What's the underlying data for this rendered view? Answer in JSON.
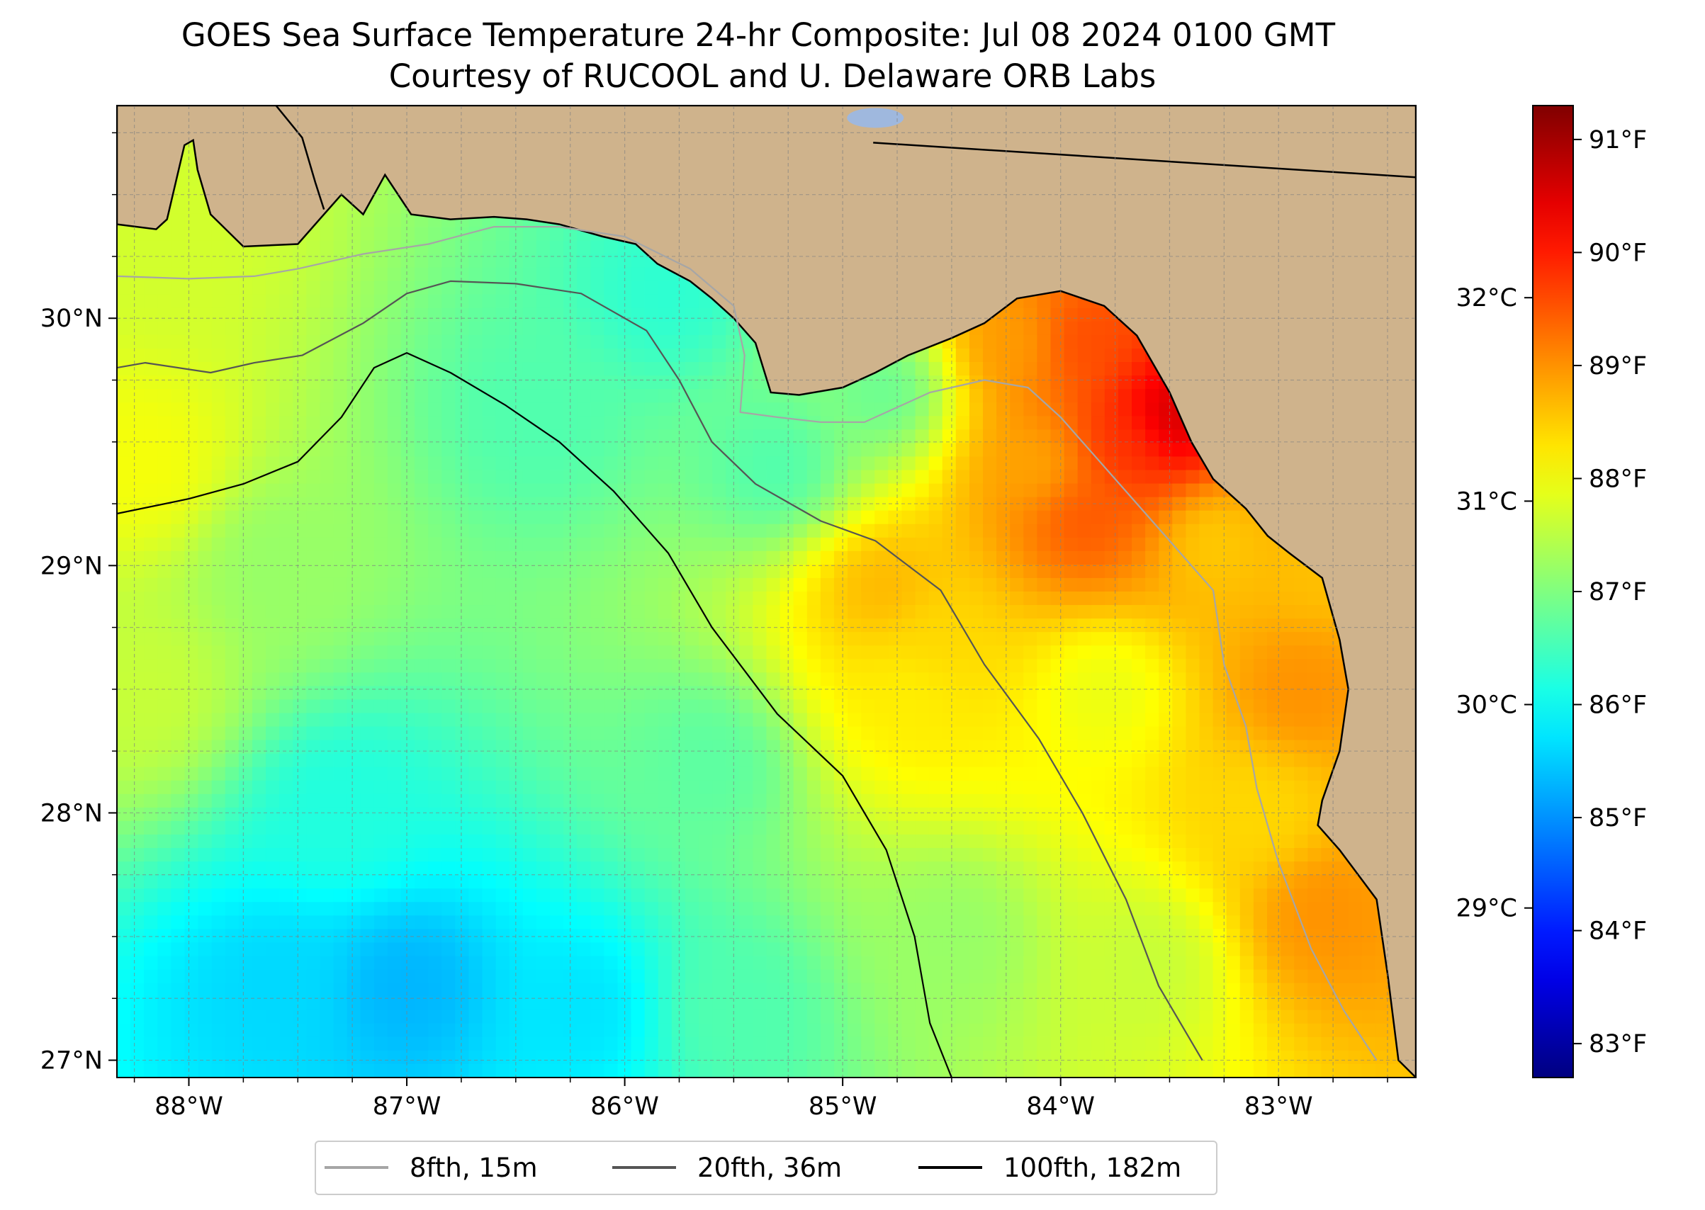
{
  "chart_data": {
    "type": "heatmap",
    "title": "GOES Sea Surface Temperature 24-hr Composite: Jul 08 2024 0100 GMT",
    "subtitle": "Courtesy of RUCOOL and U. Delaware ORB Labs",
    "map_extent": {
      "lon": [
        -88.33,
        -82.37
      ],
      "lat": [
        26.93,
        30.86
      ]
    },
    "x_ticks": [
      {
        "value": -88,
        "label": "88°W"
      },
      {
        "value": -87,
        "label": "87°W"
      },
      {
        "value": -86,
        "label": "86°W"
      },
      {
        "value": -85,
        "label": "85°W"
      },
      {
        "value": -84,
        "label": "84°W"
      },
      {
        "value": -83,
        "label": "83°W"
      }
    ],
    "y_ticks": [
      {
        "value": 27,
        "label": "27°N"
      },
      {
        "value": 28,
        "label": "28°N"
      },
      {
        "value": 29,
        "label": "29°N"
      },
      {
        "value": 30,
        "label": "30°N"
      }
    ],
    "grid": true,
    "colorbar": {
      "range_f": [
        82.7,
        91.3
      ],
      "colormap": "jet",
      "fahrenheit_ticks": [
        {
          "value": 83,
          "label": "83°F"
        },
        {
          "value": 84,
          "label": "84°F"
        },
        {
          "value": 85,
          "label": "85°F"
        },
        {
          "value": 86,
          "label": "86°F"
        },
        {
          "value": 87,
          "label": "87°F"
        },
        {
          "value": 88,
          "label": "88°F"
        },
        {
          "value": 89,
          "label": "89°F"
        },
        {
          "value": 90,
          "label": "90°F"
        },
        {
          "value": 91,
          "label": "91°F"
        }
      ],
      "celsius_ticks": [
        {
          "value": 29,
          "label": "29°C"
        },
        {
          "value": 30,
          "label": "30°C"
        },
        {
          "value": 31,
          "label": "31°C"
        },
        {
          "value": 32,
          "label": "32°C"
        }
      ]
    },
    "sst_anchors": [
      {
        "lon": -87.0,
        "lat": 27.3,
        "temp_f": 85.3
      },
      {
        "lon": -87.6,
        "lat": 27.3,
        "temp_f": 85.6
      },
      {
        "lon": -86.2,
        "lat": 27.2,
        "temp_f": 85.7
      },
      {
        "lon": -87.3,
        "lat": 28.0,
        "temp_f": 86.2
      },
      {
        "lon": -85.6,
        "lat": 28.2,
        "temp_f": 86.7
      },
      {
        "lon": -86.4,
        "lat": 29.6,
        "temp_f": 86.6
      },
      {
        "lon": -85.8,
        "lat": 30.1,
        "temp_f": 86.3
      },
      {
        "lon": -87.6,
        "lat": 29.0,
        "temp_f": 87.2
      },
      {
        "lon": -88.1,
        "lat": 30.3,
        "temp_f": 87.7
      },
      {
        "lon": -88.2,
        "lat": 29.4,
        "temp_f": 88.0
      },
      {
        "lon": -88.2,
        "lat": 28.5,
        "temp_f": 87.6
      },
      {
        "lon": -84.6,
        "lat": 28.7,
        "temp_f": 88.4
      },
      {
        "lon": -84.8,
        "lat": 28.9,
        "temp_f": 88.7
      },
      {
        "lon": -84.7,
        "lat": 28.5,
        "temp_f": 88.2
      },
      {
        "lon": -84.5,
        "lat": 27.5,
        "temp_f": 87.2
      },
      {
        "lon": -85.5,
        "lat": 27.2,
        "temp_f": 86.6
      },
      {
        "lon": -83.6,
        "lat": 27.4,
        "temp_f": 87.6
      },
      {
        "lon": -83.8,
        "lat": 28.5,
        "temp_f": 87.9
      },
      {
        "lon": -84.1,
        "lat": 29.4,
        "temp_f": 88.8
      },
      {
        "lon": -83.9,
        "lat": 29.2,
        "temp_f": 89.5
      },
      {
        "lon": -83.7,
        "lat": 29.5,
        "temp_f": 89.8
      },
      {
        "lon": -83.5,
        "lat": 29.6,
        "temp_f": 90.7
      },
      {
        "lon": -84.2,
        "lat": 29.9,
        "temp_f": 88.9
      },
      {
        "lon": -83.9,
        "lat": 29.9,
        "temp_f": 89.6
      },
      {
        "lon": -84.8,
        "lat": 29.7,
        "temp_f": 86.8
      },
      {
        "lon": -85.3,
        "lat": 29.4,
        "temp_f": 86.6
      },
      {
        "lon": -82.9,
        "lat": 28.5,
        "temp_f": 89.0
      },
      {
        "lon": -82.8,
        "lat": 29.0,
        "temp_f": 88.6
      },
      {
        "lon": -82.8,
        "lat": 27.6,
        "temp_f": 89.0
      },
      {
        "lon": -83.1,
        "lat": 28.0,
        "temp_f": 88.4
      },
      {
        "lon": -83.3,
        "lat": 29.1,
        "temp_f": 88.5
      }
    ],
    "land_color": "#cfb38c",
    "lake_color": "#9fb8de",
    "contours": [
      {
        "name": "8fth, 15m",
        "color": "#a6a6a6",
        "points": [
          [
            -88.33,
            30.17
          ],
          [
            -88.0,
            30.16
          ],
          [
            -87.7,
            30.17
          ],
          [
            -87.5,
            30.2
          ],
          [
            -87.2,
            30.26
          ],
          [
            -86.9,
            30.3
          ],
          [
            -86.6,
            30.37
          ],
          [
            -86.3,
            30.37
          ],
          [
            -86.0,
            30.33
          ],
          [
            -85.7,
            30.2
          ],
          [
            -85.5,
            30.05
          ],
          [
            -85.45,
            29.85
          ],
          [
            -85.47,
            29.62
          ],
          [
            -85.3,
            29.6
          ],
          [
            -85.1,
            29.58
          ],
          [
            -84.9,
            29.58
          ],
          [
            -84.6,
            29.7
          ],
          [
            -84.35,
            29.75
          ],
          [
            -84.15,
            29.72
          ],
          [
            -84.0,
            29.6
          ],
          [
            -83.85,
            29.45
          ],
          [
            -83.7,
            29.3
          ],
          [
            -83.5,
            29.1
          ],
          [
            -83.3,
            28.9
          ],
          [
            -83.25,
            28.6
          ],
          [
            -83.15,
            28.35
          ],
          [
            -83.1,
            28.1
          ],
          [
            -83.0,
            27.8
          ],
          [
            -82.85,
            27.45
          ],
          [
            -82.7,
            27.2
          ],
          [
            -82.55,
            27.0
          ]
        ]
      },
      {
        "name": "20fth, 36m",
        "color": "#555555",
        "points": [
          [
            -88.33,
            29.8
          ],
          [
            -88.2,
            29.82
          ],
          [
            -87.9,
            29.78
          ],
          [
            -87.7,
            29.82
          ],
          [
            -87.48,
            29.85
          ],
          [
            -87.2,
            29.98
          ],
          [
            -87.0,
            30.1
          ],
          [
            -86.8,
            30.15
          ],
          [
            -86.5,
            30.14
          ],
          [
            -86.2,
            30.1
          ],
          [
            -85.9,
            29.95
          ],
          [
            -85.75,
            29.75
          ],
          [
            -85.6,
            29.5
          ],
          [
            -85.4,
            29.33
          ],
          [
            -85.1,
            29.18
          ],
          [
            -84.85,
            29.1
          ],
          [
            -84.55,
            28.9
          ],
          [
            -84.35,
            28.6
          ],
          [
            -84.1,
            28.3
          ],
          [
            -83.9,
            28.0
          ],
          [
            -83.7,
            27.65
          ],
          [
            -83.55,
            27.3
          ],
          [
            -83.35,
            27.0
          ]
        ]
      },
      {
        "name": "100fth, 182m",
        "color": "#000000",
        "points": [
          [
            -88.33,
            29.21
          ],
          [
            -88.0,
            29.27
          ],
          [
            -87.75,
            29.33
          ],
          [
            -87.5,
            29.42
          ],
          [
            -87.3,
            29.6
          ],
          [
            -87.15,
            29.8
          ],
          [
            -87.0,
            29.86
          ],
          [
            -86.8,
            29.78
          ],
          [
            -86.55,
            29.65
          ],
          [
            -86.3,
            29.5
          ],
          [
            -86.05,
            29.3
          ],
          [
            -85.8,
            29.05
          ],
          [
            -85.6,
            28.75
          ],
          [
            -85.3,
            28.4
          ],
          [
            -85.0,
            28.15
          ],
          [
            -84.8,
            27.85
          ],
          [
            -84.67,
            27.5
          ],
          [
            -84.6,
            27.15
          ],
          [
            -84.5,
            26.93
          ]
        ]
      }
    ],
    "legend": [
      {
        "label": "8fth, 15m",
        "color": "#a6a6a6"
      },
      {
        "label": "20fth, 36m",
        "color": "#555555"
      },
      {
        "label": "100fth, 182m",
        "color": "#000000"
      }
    ],
    "legend_position": "bottom-center"
  }
}
